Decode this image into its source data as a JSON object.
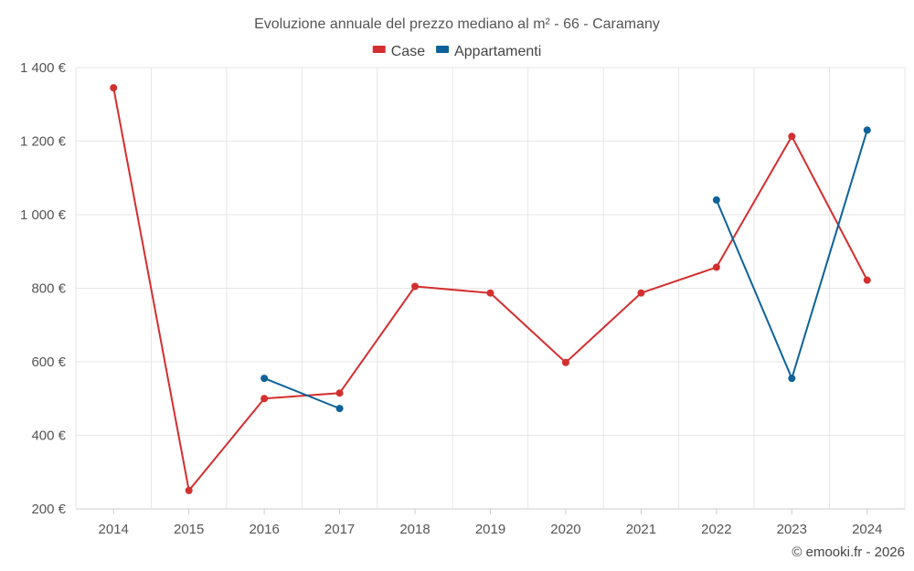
{
  "chart_data": {
    "type": "line",
    "title": "Evoluzione annuale del prezzo mediano al m² - 66 - Caramany",
    "categories": [
      "2014",
      "2015",
      "2016",
      "2017",
      "2018",
      "2019",
      "2020",
      "2021",
      "2022",
      "2023",
      "2024"
    ],
    "series": [
      {
        "name": "Case",
        "color": "#d32f2f",
        "values": [
          1345,
          250,
          500,
          515,
          805,
          787,
          598,
          787,
          857,
          1213,
          822
        ]
      },
      {
        "name": "Appartamenti",
        "color": "#0d6399",
        "values": [
          null,
          null,
          555,
          473,
          null,
          null,
          null,
          null,
          1040,
          555,
          1230
        ]
      }
    ],
    "ylim": [
      200,
      1400
    ],
    "yticks": [
      200,
      400,
      600,
      800,
      1000,
      1200,
      1400
    ],
    "ytick_labels": [
      "200 €",
      "400 €",
      "600 €",
      "800 €",
      "1 000 €",
      "1 200 €",
      "1 400 €"
    ],
    "xlabel": "",
    "ylabel": "",
    "grid": true,
    "legend_position": "top-center"
  },
  "credit": "© emooki.fr - 2026"
}
